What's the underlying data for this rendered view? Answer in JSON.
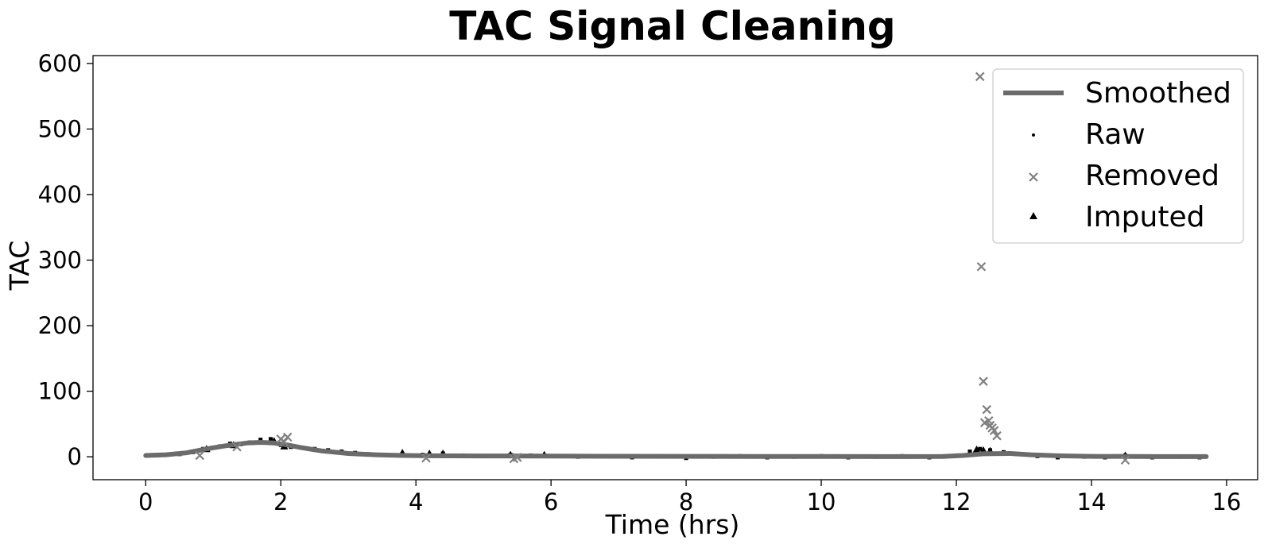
{
  "chart_data": {
    "type": "scatter",
    "title": "TAC Signal Cleaning",
    "xlabel": "Time (hrs)",
    "ylabel": "TAC",
    "xlim": [
      -0.78,
      16.46
    ],
    "ylim": [
      -35,
      612
    ],
    "xticks": [
      0,
      2,
      4,
      6,
      8,
      10,
      12,
      14,
      16
    ],
    "yticks": [
      0,
      100,
      200,
      300,
      400,
      500,
      600
    ],
    "grid": false,
    "legend_position": "top-right",
    "colors": {
      "smoothed": "#6b6b6b",
      "raw": "#000000",
      "removed": "#808080",
      "imputed": "#000000"
    },
    "series": [
      {
        "name": "Smoothed",
        "kind": "line",
        "x": [
          0,
          0.3,
          0.6,
          0.9,
          1.2,
          1.5,
          1.7,
          1.9,
          2.1,
          2.3,
          2.6,
          3.0,
          3.4,
          3.8,
          4.2,
          5,
          6,
          7,
          8,
          9,
          10,
          11,
          11.8,
          12.1,
          12.4,
          12.8,
          13.1,
          13.5,
          14,
          15,
          15.7
        ],
        "y": [
          2,
          3,
          6,
          12,
          17,
          21,
          22,
          21,
          18,
          14,
          9,
          5,
          3,
          2,
          1.5,
          1.2,
          1,
          0.8,
          0.6,
          0.5,
          0.4,
          0.3,
          0.5,
          2,
          4.5,
          5,
          3,
          1.5,
          0.6,
          0.3,
          0.2
        ]
      },
      {
        "name": "Raw",
        "kind": "points",
        "x": [
          0.1,
          0.3,
          0.5,
          0.7,
          0.85,
          1.0,
          1.1,
          1.25,
          1.4,
          1.55,
          1.7,
          1.85,
          2.0,
          2.15,
          2.3,
          2.5,
          2.7,
          2.9,
          3.1,
          3.3,
          3.5,
          3.8,
          4.1,
          4.4,
          4.7,
          5.0,
          5.4,
          5.7,
          6.0,
          6.4,
          6.8,
          7.2,
          7.6,
          8.0,
          8.4,
          8.8,
          9.2,
          9.6,
          10.0,
          10.4,
          10.8,
          11.2,
          11.6,
          12.0,
          12.2,
          12.35,
          12.5,
          12.7,
          12.9,
          13.2,
          13.5,
          13.9,
          14.2,
          14.5,
          14.9,
          15.3,
          15.6
        ],
        "y": [
          2,
          3,
          4,
          7,
          12,
          14,
          16,
          20,
          19,
          22,
          26,
          27,
          18,
          15,
          14,
          12,
          10,
          8,
          6,
          4,
          3,
          4,
          3,
          5,
          2,
          1,
          3,
          2,
          1,
          0,
          1,
          -1,
          1,
          -2,
          0,
          1,
          -1,
          0,
          1,
          -1,
          0,
          1,
          -1,
          2,
          8,
          12,
          10,
          7,
          4,
          1,
          -1,
          0,
          -1,
          2,
          -1,
          0,
          -1
        ]
      },
      {
        "name": "Removed",
        "kind": "x-markers",
        "x": [
          0.8,
          1.35,
          2.0,
          2.05,
          2.1,
          4.15,
          5.45,
          5.5,
          12.35,
          12.37,
          12.4,
          12.42,
          12.45,
          12.48,
          12.5,
          12.53,
          12.56,
          12.6,
          14.5
        ],
        "y": [
          2,
          15,
          27,
          23,
          30,
          -2,
          -3,
          -1,
          580,
          290,
          115,
          52,
          72,
          55,
          48,
          44,
          40,
          32,
          -5
        ]
      },
      {
        "name": "Imputed",
        "kind": "triangle-markers",
        "x": [
          0.9,
          1.3,
          1.9,
          2.05,
          3.8,
          4.2,
          4.4,
          5.4,
          5.9,
          12.3,
          12.4,
          12.5,
          14.5
        ],
        "y": [
          12,
          18,
          24,
          16,
          6,
          5,
          5,
          3,
          3,
          11,
          10,
          9,
          2
        ]
      }
    ],
    "legend": [
      "Smoothed",
      "Raw",
      "Removed",
      "Imputed"
    ]
  }
}
